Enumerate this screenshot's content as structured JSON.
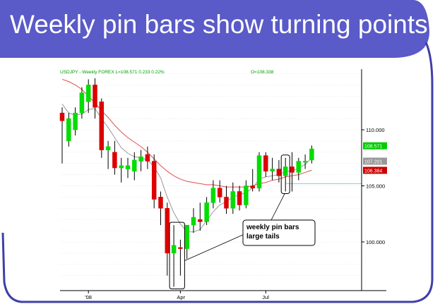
{
  "slide": {
    "title": "Weekly pin bars show turning points",
    "colors": {
      "banner": "#5a5ac8",
      "border": "#3f3fa8"
    }
  },
  "chart_data": {
    "type": "candlestick",
    "header_left": "USDJPY - Weekly FOREX L=108.571 0.233 0.22%",
    "header_right": "O=108.338",
    "y_ticks": [
      {
        "value": 110,
        "label": "110.000"
      },
      {
        "value": 105,
        "label": "105.000"
      },
      {
        "value": 100,
        "label": "100.000"
      }
    ],
    "x_ticks": [
      {
        "index": 4,
        "label": "'08"
      },
      {
        "index": 18,
        "label": "Apr"
      },
      {
        "index": 31,
        "label": "Jul"
      }
    ],
    "ylim": [
      96,
      116
    ],
    "price_tags": [
      {
        "label": "108.571",
        "value": 108.571,
        "bg": "#00cc00",
        "fg": "#ffffff"
      },
      {
        "label": "107.201",
        "value": 107.201,
        "bg": "#999999",
        "fg": "#ffffff"
      },
      {
        "label": "106.384",
        "value": 106.384,
        "bg": "#cc0000",
        "fg": "#ffffff"
      }
    ],
    "horizontal_level": 105.2,
    "candles": [
      [
        111.5,
        110.8,
        112.0,
        107.0
      ],
      [
        109.0,
        111.0,
        111.5,
        108.5
      ],
      [
        110.0,
        111.5,
        112.0,
        109.5
      ],
      [
        111.5,
        113.3,
        113.8,
        111.0
      ],
      [
        112.5,
        114.0,
        114.5,
        111.5
      ],
      [
        114.0,
        112.0,
        114.6,
        111.0
      ],
      [
        112.5,
        108.2,
        112.8,
        107.5
      ],
      [
        108.2,
        108.5,
        109.0,
        106.5
      ],
      [
        108.0,
        106.6,
        109.0,
        106.0
      ],
      [
        106.6,
        106.8,
        107.5,
        105.3
      ],
      [
        106.5,
        106.8,
        107.5,
        105.7
      ],
      [
        106.3,
        107.3,
        108.0,
        105.5
      ],
      [
        107.2,
        107.6,
        108.2,
        106.3
      ],
      [
        107.8,
        107.2,
        108.5,
        106.5
      ],
      [
        107.2,
        103.8,
        107.8,
        103.0
      ],
      [
        104.0,
        103.0,
        104.5,
        101.5
      ],
      [
        103.0,
        99.0,
        103.5,
        97.0
      ],
      [
        99.0,
        99.7,
        101.5,
        96.0
      ],
      [
        99.5,
        99.4,
        100.2,
        97.0
      ],
      [
        99.4,
        101.5,
        101.5,
        98.5
      ],
      [
        101.5,
        102.2,
        103.0,
        100.8
      ],
      [
        102.0,
        101.8,
        103.5,
        101.0
      ],
      [
        101.8,
        103.5,
        104.0,
        101.5
      ],
      [
        103.5,
        104.8,
        105.5,
        103.0
      ],
      [
        104.8,
        104.0,
        105.5,
        103.5
      ],
      [
        104.0,
        103.0,
        105.0,
        102.5
      ],
      [
        103.0,
        104.5,
        105.3,
        102.5
      ],
      [
        104.5,
        103.3,
        105.0,
        102.8
      ],
      [
        103.3,
        105.0,
        105.5,
        103.0
      ],
      [
        105.0,
        104.8,
        106.5,
        104.5
      ],
      [
        104.8,
        107.7,
        108.0,
        104.5
      ],
      [
        107.7,
        106.3,
        108.0,
        105.8
      ],
      [
        106.3,
        106.5,
        107.5,
        105.5
      ],
      [
        106.5,
        105.9,
        107.3,
        105.3
      ],
      [
        105.9,
        106.7,
        107.5,
        104.5
      ],
      [
        106.7,
        106.2,
        108.0,
        104.5
      ],
      [
        106.2,
        107.2,
        107.5,
        105.5
      ],
      [
        107.2,
        107.2,
        107.8,
        106.5
      ],
      [
        107.3,
        108.3,
        108.6,
        107.0
      ]
    ],
    "ma_fast": [
      112.3,
      111.5,
      111.3,
      111.4,
      111.8,
      111.9,
      111.0,
      110.2,
      109.3,
      108.4,
      107.9,
      107.6,
      107.5,
      107.3,
      106.7,
      105.7,
      104.0,
      102.6,
      101.6,
      100.9,
      100.9,
      101.1,
      101.9,
      102.7,
      103.3,
      103.6,
      104.0,
      104.2,
      104.4,
      104.8,
      105.6,
      105.8,
      105.9,
      106.0,
      106.3,
      106.3,
      106.6,
      106.9,
      107.5
    ],
    "ma_slow": [
      114.5,
      114.3,
      114.0,
      113.6,
      113.0,
      112.4,
      111.7,
      111.1,
      110.4,
      109.8,
      109.3,
      108.9,
      108.5,
      108.0,
      107.4,
      106.8,
      106.3,
      105.9,
      105.6,
      105.4,
      105.3,
      105.2,
      105.1,
      105.1,
      105.0,
      104.9,
      104.9,
      104.9,
      104.9,
      105.0,
      105.2,
      105.3,
      105.5,
      105.6,
      105.8,
      105.9,
      106.0,
      106.2,
      106.4
    ],
    "annotation": {
      "lines": [
        "weekly pin bars",
        "large tails"
      ],
      "boxed_candles": [
        17,
        18,
        34
      ]
    }
  }
}
